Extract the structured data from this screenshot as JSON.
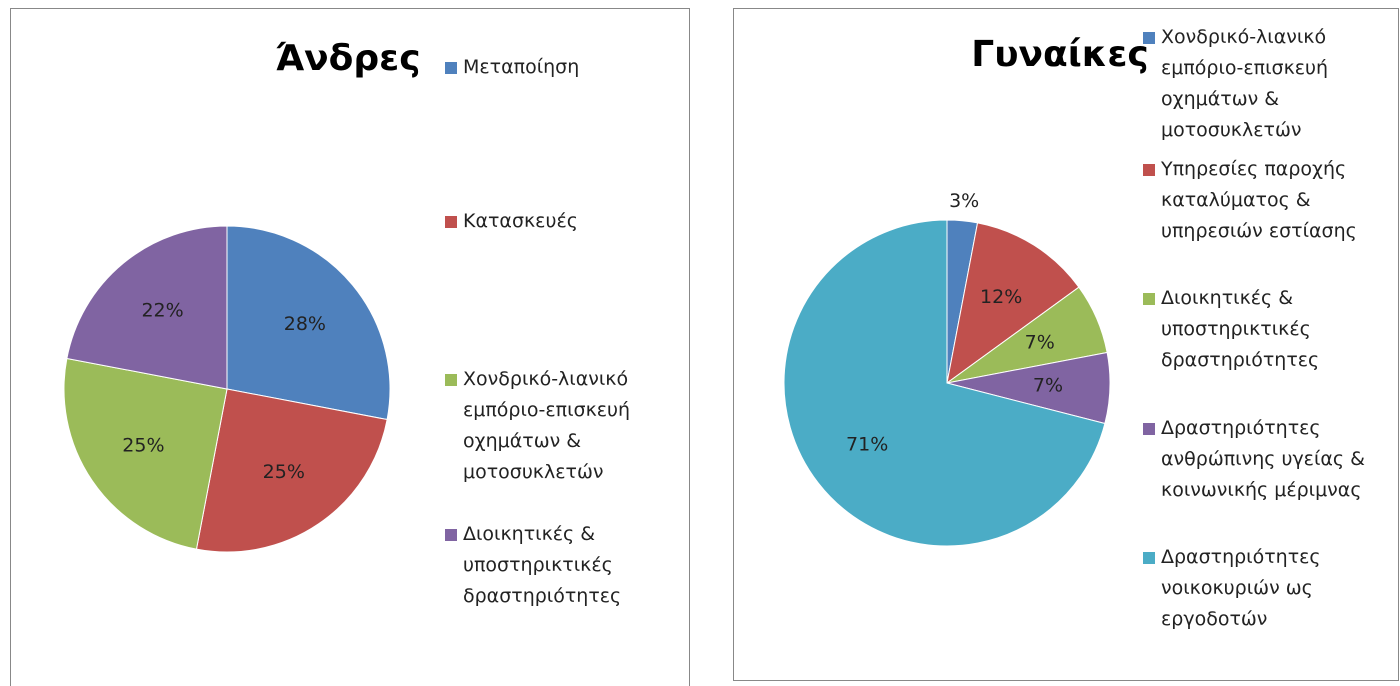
{
  "chart_data": [
    {
      "type": "pie",
      "title": "Άνδρες",
      "categories": [
        "Μεταποίηση",
        "Κατασκευές",
        "Χονδρικό-λιανικό εμπόριο-επισκευή οχημάτων & μοτοσυκλετών",
        "Διοικητικές & υποστηρικτικές δραστηριότητες"
      ],
      "values": [
        28,
        25,
        25,
        22
      ],
      "value_labels": [
        "28%",
        "25%",
        "25%",
        "22%"
      ],
      "colors": [
        "#4f81bd",
        "#c0504d",
        "#9bbb59",
        "#8064a2"
      ],
      "legend": "right"
    },
    {
      "type": "pie",
      "title": "Γυναίκες",
      "categories": [
        "Χονδρικό-λιανικό εμπόριο-επισκευή οχημάτων & μοτοσυκλετών",
        "Υπηρεσίες παροχής καταλύματος & υπηρεσιών εστίασης",
        "Διοικητικές & υποστηρικτικές δραστηριότητες",
        "Δραστηριότητες ανθρώπινης υγείας & κοινωνικής μέριμνας",
        "Δραστηριότητες νοικοκυριών ως εργοδοτών"
      ],
      "values": [
        3,
        12,
        7,
        7,
        71
      ],
      "value_labels": [
        "3%",
        "12%",
        "7%",
        "7%",
        "71%"
      ],
      "colors": [
        "#4f81bd",
        "#c0504d",
        "#9bbb59",
        "#8064a2",
        "#4bacc6"
      ],
      "legend": "right"
    }
  ]
}
